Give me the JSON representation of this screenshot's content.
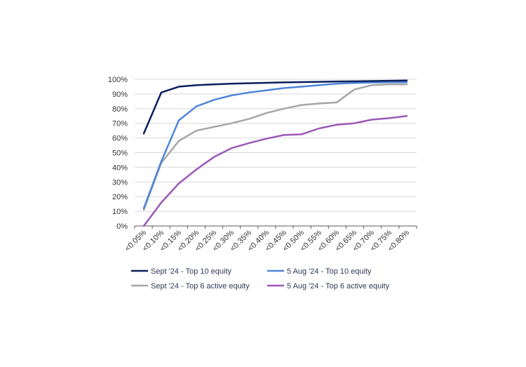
{
  "chart_data": {
    "type": "line",
    "title": "",
    "xlabel": "",
    "ylabel": "",
    "ylim": [
      0,
      100
    ],
    "y_ticks": [
      "0%",
      "10%",
      "20%",
      "30%",
      "40%",
      "50%",
      "60%",
      "70%",
      "80%",
      "90%",
      "100%"
    ],
    "grid": "horizontal",
    "legend_position": "bottom",
    "categories": [
      "<0.05%",
      "<0.10%",
      "<0.15%",
      "<0.20%",
      "<0.25%",
      "<0.30%",
      "<0.35%",
      "<0.40%",
      "<0.45%",
      "<0.50%",
      "<0.55%",
      "<0.60%",
      "<0.65%",
      "<0.70%",
      "<0.75%",
      "<0.80%"
    ],
    "series": [
      {
        "name": "Sept '24 - Top 10 equity",
        "color": "#0b1f5c",
        "values": [
          63,
          91,
          95,
          96,
          96.5,
          97,
          97.3,
          97.6,
          97.9,
          98.1,
          98.3,
          98.5,
          98.6,
          98.8,
          99,
          99.2
        ]
      },
      {
        "name": "5 Aug '24 - Top 10 equity",
        "color": "#4f86d9",
        "values": [
          12,
          44,
          72,
          81.5,
          86,
          89,
          91,
          92.5,
          94,
          95,
          96,
          97,
          97.5,
          97.8,
          98,
          98
        ]
      },
      {
        "name": "Sept '24 - Top 6 active equity",
        "color": "#a6a6a6",
        "values": [
          11,
          43,
          58,
          65,
          67.5,
          70,
          73,
          77,
          80,
          82.5,
          83.5,
          84.2,
          93,
          96,
          96.5,
          96.5
        ]
      },
      {
        "name": "5 Aug '24 - Top 6 active equity",
        "color": "#9b59b6",
        "values": [
          0,
          16,
          29,
          38.5,
          47,
          53,
          56.5,
          59.5,
          62,
          62.5,
          66.5,
          69,
          70,
          72.5,
          73.5,
          75
        ]
      }
    ]
  }
}
